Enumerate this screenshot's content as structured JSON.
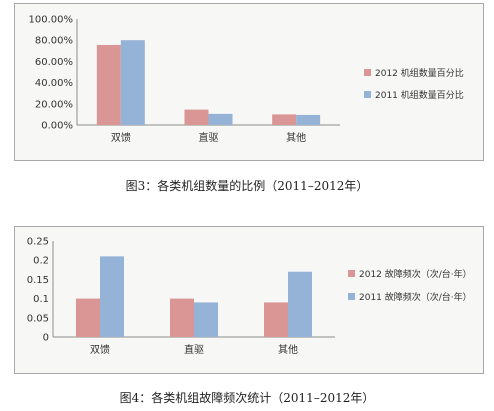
{
  "colors": {
    "series_2012": "#d99694",
    "series_2011": "#95b3d7",
    "axis": "#8c8c8c",
    "gridline": "#d0d0d0"
  },
  "captions": {
    "fig3": "图3：各类机组数量的比例（2011–2012年）",
    "fig4": "图4：各类机组故障频次统计（2011–2012年）"
  },
  "chart_data": [
    {
      "type": "bar",
      "title": "",
      "categories": [
        "双馈",
        "直驱",
        "其他"
      ],
      "series": [
        {
          "name": "2012 机组数量百分比",
          "values": [
            75.5,
            14.5,
            10.0
          ]
        },
        {
          "name": "2011 机组数量百分比",
          "values": [
            80.0,
            10.5,
            9.5
          ]
        }
      ],
      "ylim": [
        0,
        100
      ],
      "yticks": [
        "0.00%",
        "20.00%",
        "40.00%",
        "60.00%",
        "80.00%",
        "100.00%"
      ],
      "xlabel": "",
      "ylabel": "",
      "grid": false,
      "legend_position": "right"
    },
    {
      "type": "bar",
      "title": "",
      "categories": [
        "双馈",
        "直驱",
        "其他"
      ],
      "series": [
        {
          "name": "2012 故障频次（次/台·年）",
          "values": [
            0.1,
            0.1,
            0.09
          ]
        },
        {
          "name": "2011 故障频次（次/台·年）",
          "values": [
            0.21,
            0.09,
            0.17
          ]
        }
      ],
      "ylim": [
        0,
        0.25
      ],
      "yticks": [
        "0",
        "0.05",
        "0.1",
        "0.15",
        "0.2",
        "0.25"
      ],
      "xlabel": "",
      "ylabel": "",
      "grid": false,
      "legend_position": "right"
    }
  ]
}
